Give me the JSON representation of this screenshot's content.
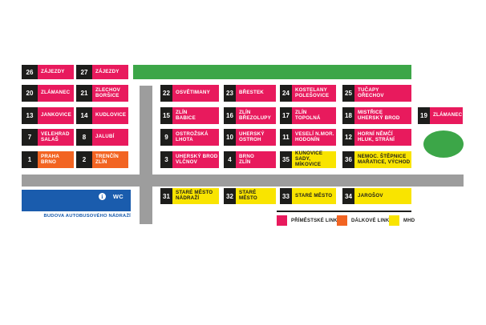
{
  "colors": {
    "pink": "#E81A5D",
    "orange": "#F26422",
    "yellow": "#F9E400",
    "green": "#3CA648",
    "blue": "#1A5CAD",
    "gray": "#9D9D9D",
    "black": "#1D1D1B"
  },
  "stands": [
    {
      "num": "26",
      "lines": [
        "ZÁJEZDY"
      ],
      "type": "suburban",
      "area": "left",
      "row": 0,
      "col": 0
    },
    {
      "num": "27",
      "lines": [
        "ZÁJEZDY"
      ],
      "type": "suburban",
      "area": "left",
      "row": 0,
      "col": 1
    },
    {
      "num": "20",
      "lines": [
        "ZLÁMANEC"
      ],
      "type": "suburban",
      "area": "left",
      "row": 1,
      "col": 0
    },
    {
      "num": "21",
      "lines": [
        "ZLECHOV",
        "BORŠICE"
      ],
      "type": "suburban",
      "area": "left",
      "row": 1,
      "col": 1
    },
    {
      "num": "13",
      "lines": [
        "JANKOVICE"
      ],
      "type": "suburban",
      "area": "left",
      "row": 2,
      "col": 0
    },
    {
      "num": "14",
      "lines": [
        "KUDLOVICE"
      ],
      "type": "suburban",
      "area": "left",
      "row": 2,
      "col": 1
    },
    {
      "num": "7",
      "lines": [
        "VELEHRAD",
        "SALAŠ"
      ],
      "type": "suburban",
      "area": "left",
      "row": 3,
      "col": 0
    },
    {
      "num": "8",
      "lines": [
        "JALUBÍ"
      ],
      "type": "suburban",
      "area": "left",
      "row": 3,
      "col": 1
    },
    {
      "num": "1",
      "lines": [
        "PRAHA",
        "BRNO"
      ],
      "type": "longdistance",
      "area": "left",
      "row": 4,
      "col": 0
    },
    {
      "num": "2",
      "lines": [
        "TRENČÍN",
        "ZLÍN"
      ],
      "type": "longdistance",
      "area": "left",
      "row": 4,
      "col": 1
    },
    {
      "num": "22",
      "lines": [
        "OSVĚTIMANY"
      ],
      "type": "suburban",
      "area": "grid",
      "row": 1,
      "col": 0
    },
    {
      "num": "23",
      "lines": [
        "BŘESTEK"
      ],
      "type": "suburban",
      "area": "grid",
      "row": 1,
      "col": 1
    },
    {
      "num": "24",
      "lines": [
        "KOSTELANY",
        "POLEŠOVICE"
      ],
      "type": "suburban",
      "area": "grid",
      "row": 1,
      "col": 2
    },
    {
      "num": "25",
      "lines": [
        "TUČAPY",
        "OŘECHOV"
      ],
      "type": "suburban",
      "area": "grid",
      "row": 1,
      "col": 3
    },
    {
      "num": "15",
      "lines": [
        "ZLÍN",
        "BABICE"
      ],
      "type": "suburban",
      "area": "grid",
      "row": 2,
      "col": 0
    },
    {
      "num": "16",
      "lines": [
        "ZLÍN",
        "BŘEZOLUPY"
      ],
      "type": "suburban",
      "area": "grid",
      "row": 2,
      "col": 1
    },
    {
      "num": "17",
      "lines": [
        "ZLÍN",
        "TOPOLNÁ"
      ],
      "type": "suburban",
      "area": "grid",
      "row": 2,
      "col": 2
    },
    {
      "num": "18",
      "lines": [
        "MISTŘICE",
        "UHERSKÝ BROD"
      ],
      "type": "suburban",
      "area": "grid",
      "row": 2,
      "col": 3
    },
    {
      "num": "19",
      "lines": [
        "ZLÁMANEC"
      ],
      "type": "suburban",
      "area": "grid",
      "row": 2,
      "col": 4
    },
    {
      "num": "9",
      "lines": [
        "OSTROŽSKÁ",
        "LHOTA"
      ],
      "type": "suburban",
      "area": "grid",
      "row": 3,
      "col": 0
    },
    {
      "num": "10",
      "lines": [
        "UHERSKÝ",
        "OSTROH"
      ],
      "type": "suburban",
      "area": "grid",
      "row": 3,
      "col": 1
    },
    {
      "num": "11",
      "lines": [
        "VESELÍ N.MOR.",
        "HODONÍN"
      ],
      "type": "suburban",
      "area": "grid",
      "row": 3,
      "col": 2
    },
    {
      "num": "12",
      "lines": [
        "HORNÍ NĚMČÍ",
        "HLUK, STRÁNÍ"
      ],
      "type": "suburban",
      "area": "grid",
      "row": 3,
      "col": 3
    },
    {
      "num": "3",
      "lines": [
        "UHERSKÝ BROD",
        "VLČNOV"
      ],
      "type": "suburban",
      "area": "grid",
      "row": 4,
      "col": 0
    },
    {
      "num": "4",
      "lines": [
        "BRNO",
        "ZLÍN"
      ],
      "type": "suburban",
      "area": "grid",
      "row": 4,
      "col": 1
    },
    {
      "num": "35",
      "lines": [
        "KUNOVICE",
        "SADY, MÍKOVICE"
      ],
      "type": "mhd",
      "area": "grid",
      "row": 4,
      "col": 2
    },
    {
      "num": "36",
      "lines": [
        "NEMOC. ŠTĚPNICE",
        "MAŘATICE, VÝCHOD"
      ],
      "type": "mhd",
      "area": "grid",
      "row": 4,
      "col": 3
    },
    {
      "num": "31",
      "lines": [
        "STARÉ MĚSTO",
        "NÁDRAŽÍ"
      ],
      "type": "mhd",
      "area": "bottom",
      "row": 5,
      "col": 0
    },
    {
      "num": "32",
      "lines": [
        "STARÉ MĚSTO"
      ],
      "type": "mhd",
      "area": "bottom",
      "row": 5,
      "col": 1
    },
    {
      "num": "33",
      "lines": [
        "STARÉ MĚSTO"
      ],
      "type": "mhd",
      "area": "bottom",
      "row": 5,
      "col": 2
    },
    {
      "num": "34",
      "lines": [
        "JAROŠOV"
      ],
      "type": "mhd",
      "area": "bottom",
      "row": 5,
      "col": 3
    }
  ],
  "building": {
    "info_icon": "i",
    "wc_label": "WC",
    "caption": "BUDOVA AUTOBUSOVÉHO NÁDRAŽÍ"
  },
  "legend": {
    "items": [
      {
        "label": "PŘÍMĚSTSKÉ LINKY",
        "type": "suburban"
      },
      {
        "label": "DÁLKOVÉ LINKY",
        "type": "longdistance"
      },
      {
        "label": "MHD",
        "type": "mhd"
      }
    ]
  }
}
